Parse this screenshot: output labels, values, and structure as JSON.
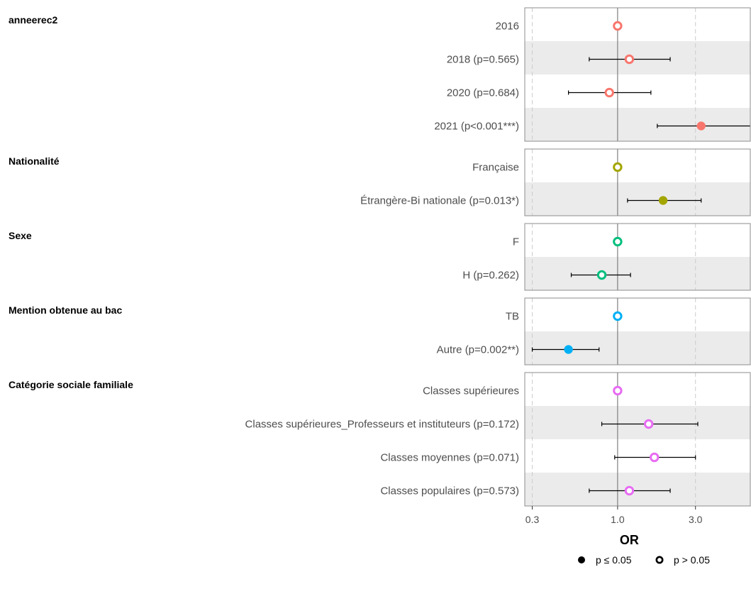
{
  "chart_data": {
    "type": "forest",
    "xlabel": "OR",
    "x_scale": "log",
    "xlim": [
      0.27,
      6.5
    ],
    "x_ticks": [
      {
        "value": 0.3,
        "label": "0.3"
      },
      {
        "value": 1.0,
        "label": "1.0"
      },
      {
        "value": 3.0,
        "label": "3.0"
      }
    ],
    "grid": true,
    "legend_position": "bottom-right",
    "legend": [
      {
        "symbol": "filled",
        "label": "p ≤ 0.05"
      },
      {
        "symbol": "hollow",
        "label": "p > 0.05"
      }
    ],
    "groups": [
      {
        "title": "anneerec2",
        "color": "#F8766D",
        "rows": [
          {
            "label": "2016",
            "or": 1.0,
            "lo": null,
            "hi": null,
            "significant": false
          },
          {
            "label": "2018 (p=0.565)",
            "or": 1.18,
            "lo": 0.67,
            "hi": 2.1,
            "significant": false
          },
          {
            "label": "2020 (p=0.684)",
            "or": 0.89,
            "lo": 0.5,
            "hi": 1.6,
            "significant": false
          },
          {
            "label": "2021 (p<0.001***)",
            "or": 3.25,
            "lo": 1.75,
            "hi": 6.6,
            "significant": true
          }
        ]
      },
      {
        "title": "Nationalité",
        "color": "#A3A500",
        "rows": [
          {
            "label": "Française",
            "or": 1.0,
            "lo": null,
            "hi": null,
            "significant": false
          },
          {
            "label": "Étrangère-Bi nationale (p=0.013*)",
            "or": 1.9,
            "lo": 1.15,
            "hi": 3.25,
            "significant": true
          }
        ]
      },
      {
        "title": "Sexe",
        "color": "#00BF7D",
        "rows": [
          {
            "label": "F",
            "or": 1.0,
            "lo": null,
            "hi": null,
            "significant": false
          },
          {
            "label": "H (p=0.262)",
            "or": 0.8,
            "lo": 0.52,
            "hi": 1.2,
            "significant": false
          }
        ]
      },
      {
        "title": "Mention obtenue au bac",
        "color": "#00B0F6",
        "rows": [
          {
            "label": "TB",
            "or": 1.0,
            "lo": null,
            "hi": null,
            "significant": false
          },
          {
            "label": "Autre (p=0.002**)",
            "or": 0.5,
            "lo": 0.3,
            "hi": 0.77,
            "significant": true
          }
        ]
      },
      {
        "title": "Catégorie sociale familiale",
        "color": "#E76BF3",
        "rows": [
          {
            "label": "Classes supérieures",
            "or": 1.0,
            "lo": null,
            "hi": null,
            "significant": false
          },
          {
            "label": "Classes supérieures_Professeurs et instituteurs (p=0.172)",
            "or": 1.55,
            "lo": 0.8,
            "hi": 3.1,
            "significant": false
          },
          {
            "label": "Classes moyennes (p=0.071)",
            "or": 1.68,
            "lo": 0.96,
            "hi": 3.0,
            "significant": false
          },
          {
            "label": "Classes populaires (p=0.573)",
            "or": 1.18,
            "lo": 0.67,
            "hi": 2.1,
            "significant": false
          }
        ]
      }
    ]
  }
}
